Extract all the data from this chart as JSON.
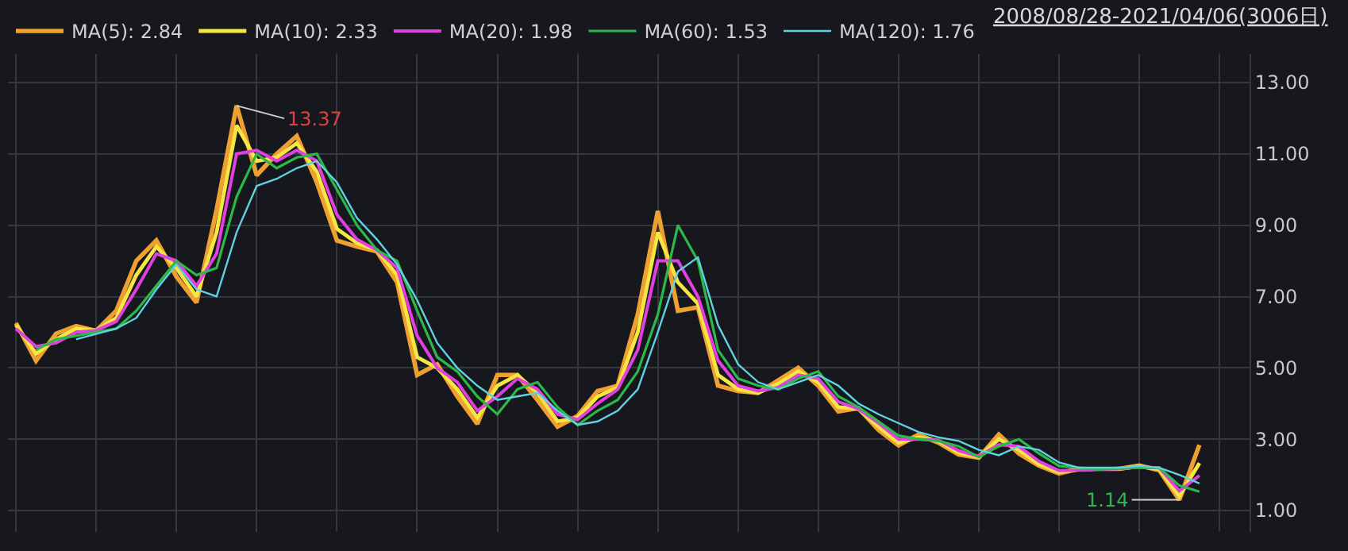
{
  "chart_data": {
    "type": "line",
    "title": "2008/08/28-2021/04/06(3006日)",
    "categories": [
      null,
      null,
      null,
      null,
      null,
      null,
      null,
      null,
      null,
      null,
      null,
      null,
      null,
      null,
      null,
      null,
      null,
      null,
      null,
      null,
      null,
      null,
      null,
      null,
      null,
      null,
      null,
      null,
      null,
      null,
      null,
      null,
      null,
      null,
      null,
      null,
      null,
      null,
      null,
      null,
      null,
      null,
      null,
      null,
      null,
      null,
      null,
      null,
      null,
      null,
      null,
      null,
      null,
      null,
      null,
      null,
      null,
      null,
      null,
      null
    ],
    "series": [
      {
        "name": "MA(5): 2.84",
        "color": "#f0a030",
        "values": [
          6.26,
          5.2,
          5.96,
          6.17,
          6.04,
          6.6,
          8.0,
          8.57,
          7.56,
          6.83,
          9.43,
          12.35,
          10.4,
          11.0,
          11.5,
          10.2,
          8.57,
          8.4,
          8.26,
          7.4,
          4.8,
          5.1,
          4.2,
          3.43,
          4.8,
          4.8,
          4.1,
          3.35,
          3.65,
          4.35,
          4.5,
          6.5,
          9.4,
          6.6,
          6.7,
          4.5,
          4.35,
          4.3,
          4.65,
          5.0,
          4.5,
          3.78,
          3.87,
          3.26,
          2.83,
          3.13,
          2.9,
          2.57,
          2.48,
          3.13,
          2.6,
          2.26,
          2.04,
          2.17,
          2.17,
          2.17,
          2.26,
          2.13,
          1.3,
          2.84
        ]
      },
      {
        "name": "MA(10): 2.33",
        "color": "#f5e642",
        "values": [
          6.2,
          5.4,
          5.8,
          6.1,
          6.05,
          6.4,
          7.6,
          8.4,
          7.8,
          7.0,
          8.8,
          11.8,
          10.8,
          10.9,
          11.3,
          10.5,
          8.9,
          8.5,
          8.3,
          7.6,
          5.3,
          5.0,
          4.4,
          3.6,
          4.5,
          4.8,
          4.3,
          3.5,
          3.6,
          4.2,
          4.45,
          6.0,
          8.8,
          7.4,
          6.8,
          4.8,
          4.4,
          4.3,
          4.55,
          4.9,
          4.6,
          3.9,
          3.85,
          3.35,
          2.9,
          3.05,
          2.95,
          2.62,
          2.5,
          3.0,
          2.7,
          2.3,
          2.08,
          2.15,
          2.17,
          2.17,
          2.24,
          2.16,
          1.4,
          2.33
        ]
      },
      {
        "name": "MA(20): 1.98",
        "color": "#e040e0",
        "values": [
          6.1,
          5.6,
          5.7,
          6.0,
          6.05,
          6.3,
          7.2,
          8.2,
          8.0,
          7.3,
          8.2,
          11.0,
          11.1,
          10.8,
          11.1,
          10.8,
          9.3,
          8.6,
          8.3,
          7.8,
          5.9,
          5.0,
          4.6,
          3.8,
          4.2,
          4.7,
          4.4,
          3.7,
          3.55,
          4.0,
          4.4,
          5.5,
          8.0,
          8.0,
          7.0,
          5.2,
          4.5,
          4.35,
          4.45,
          4.8,
          4.7,
          4.05,
          3.85,
          3.45,
          3.0,
          3.0,
          2.97,
          2.68,
          2.52,
          2.85,
          2.8,
          2.38,
          2.12,
          2.13,
          2.16,
          2.17,
          2.22,
          2.2,
          1.55,
          1.98
        ]
      },
      {
        "name": "MA(60): 1.53",
        "color": "#2db84a",
        "values": [
          null,
          5.5,
          5.8,
          5.9,
          6.0,
          6.1,
          6.6,
          7.3,
          8.0,
          7.6,
          7.8,
          9.8,
          11.0,
          10.6,
          10.9,
          11.0,
          10.0,
          9.0,
          8.3,
          8.0,
          6.6,
          5.3,
          4.9,
          4.2,
          3.7,
          4.4,
          4.6,
          3.9,
          3.4,
          3.8,
          4.1,
          4.9,
          6.5,
          9.0,
          8.0,
          5.5,
          4.7,
          4.5,
          4.4,
          4.7,
          4.9,
          4.2,
          3.9,
          3.5,
          3.1,
          3.0,
          2.95,
          2.8,
          2.5,
          2.8,
          3.0,
          2.6,
          2.25,
          2.2,
          2.15,
          2.2,
          2.2,
          2.2,
          1.7,
          1.53
        ]
      },
      {
        "name": "MA(120): 1.76",
        "color": "#5fd3e0",
        "values": [
          null,
          null,
          null,
          5.8,
          5.95,
          6.1,
          6.4,
          7.2,
          7.9,
          7.2,
          7.0,
          8.8,
          10.1,
          10.3,
          10.6,
          10.8,
          10.2,
          9.2,
          8.6,
          7.9,
          6.9,
          5.7,
          5.0,
          4.5,
          4.1,
          4.2,
          4.3,
          3.8,
          3.4,
          3.5,
          3.8,
          4.4,
          6.0,
          7.7,
          8.1,
          6.2,
          5.1,
          4.6,
          4.4,
          4.6,
          4.8,
          4.5,
          4.0,
          3.7,
          3.45,
          3.2,
          3.05,
          2.95,
          2.7,
          2.55,
          2.8,
          2.7,
          2.35,
          2.2,
          2.2,
          2.2,
          2.25,
          2.2,
          2.0,
          1.76
        ]
      }
    ],
    "annotations": [
      "13.37",
      "1.14"
    ],
    "ylim": [
      0.4,
      13.8
    ],
    "yticks": [
      {
        "value": 1,
        "label": "1.00"
      },
      {
        "value": 3,
        "label": "3.00"
      },
      {
        "value": 5,
        "label": "5.00"
      },
      {
        "value": 7,
        "label": "7.00"
      },
      {
        "value": 9,
        "label": "9.00"
      },
      {
        "value": 11,
        "label": "11.00"
      },
      {
        "value": 13,
        "label": "13.00"
      }
    ],
    "tick_labels": "y",
    "grid": true,
    "legend": "top left",
    "marker": "none",
    "line_style": "solid"
  }
}
